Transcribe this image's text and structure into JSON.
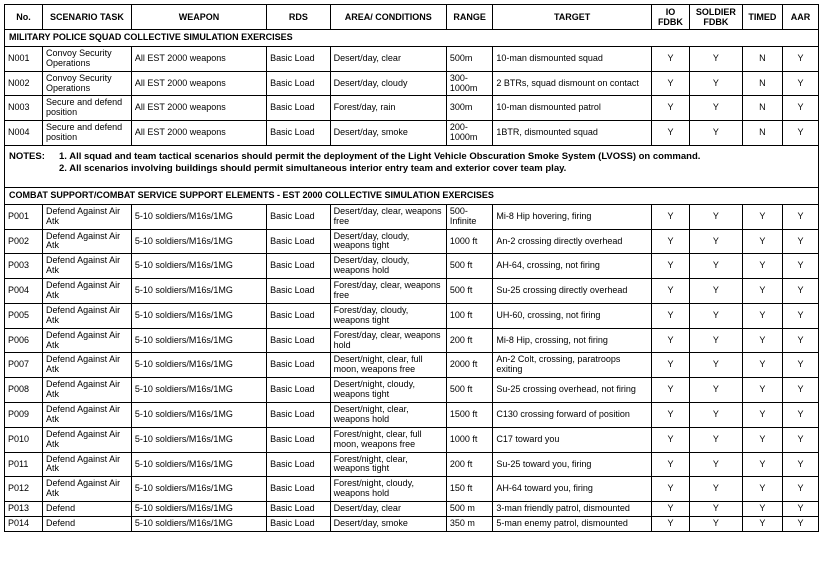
{
  "columns": [
    {
      "key": "no",
      "label": "No."
    },
    {
      "key": "task",
      "label": "SCENARIO TASK"
    },
    {
      "key": "weapon",
      "label": "WEAPON"
    },
    {
      "key": "rds",
      "label": "RDS"
    },
    {
      "key": "area",
      "label": "AREA/ CONDITIONS"
    },
    {
      "key": "range",
      "label": "RANGE"
    },
    {
      "key": "target",
      "label": "TARGET"
    },
    {
      "key": "io",
      "label": "IO FDBK"
    },
    {
      "key": "soldier",
      "label": "SOLDIER FDBK"
    },
    {
      "key": "timed",
      "label": "TIMED"
    },
    {
      "key": "aar",
      "label": "AAR"
    }
  ],
  "section1_title": "MILITARY POLICE SQUAD COLLECTIVE SIMULATION EXERCISES",
  "section1_rows": [
    {
      "no": "N001",
      "task": "Convoy Security Operations",
      "weapon": "All EST 2000 weapons",
      "rds": "Basic Load",
      "area": "Desert/day, clear",
      "range": "500m",
      "target": "10-man dismounted squad",
      "io": "Y",
      "soldier": "Y",
      "timed": "N",
      "aar": "Y"
    },
    {
      "no": "N002",
      "task": "Convoy Security Operations",
      "weapon": "All EST 2000 weapons",
      "rds": "Basic Load",
      "area": "Desert/day, cloudy",
      "range": "300-1000m",
      "target": "2 BTRs, squad dismount on contact",
      "io": "Y",
      "soldier": "Y",
      "timed": "N",
      "aar": "Y"
    },
    {
      "no": "N003",
      "task": "Secure and defend position",
      "weapon": "All EST 2000 weapons",
      "rds": "Basic Load",
      "area": "Forest/day, rain",
      "range": "300m",
      "target": "10-man dismounted patrol",
      "io": "Y",
      "soldier": "Y",
      "timed": "N",
      "aar": "Y"
    },
    {
      "no": "N004",
      "task": "Secure and defend position",
      "weapon": "All EST 2000 weapons",
      "rds": "Basic Load",
      "area": "Desert/day, smoke",
      "range": "200-1000m",
      "target": "1BTR, dismounted squad",
      "io": "Y",
      "soldier": "Y",
      "timed": "N",
      "aar": "Y"
    }
  ],
  "notes_label": "NOTES:",
  "notes": [
    "1.    All squad and team tactical scenarios should permit the deployment of the Light Vehicle Obscuration Smoke System (LVOSS) on command.",
    "2.    All scenarios involving buildings should permit simultaneous interior entry team and exterior cover team play."
  ],
  "section2_title": "COMBAT SUPPORT/COMBAT SERVICE SUPPORT ELEMENTS - EST 2000 COLLECTIVE SIMULATION EXERCISES",
  "section2_rows": [
    {
      "no": "P001",
      "task": "Defend Against Air Atk",
      "weapon": "5-10 soldiers/M16s/1MG",
      "rds": "Basic Load",
      "area": "Desert/day, clear, weapons free",
      "range": "500-Infinite",
      "target": "Mi-8 Hip hovering, firing",
      "io": "Y",
      "soldier": "Y",
      "timed": "Y",
      "aar": "Y"
    },
    {
      "no": "P002",
      "task": "Defend Against Air Atk",
      "weapon": "5-10 soldiers/M16s/1MG",
      "rds": "Basic Load",
      "area": "Desert/day, cloudy, weapons tight",
      "range": "1000 ft",
      "target": "An-2 crossing directly overhead",
      "io": "Y",
      "soldier": "Y",
      "timed": "Y",
      "aar": "Y"
    },
    {
      "no": "P003",
      "task": "Defend Against Air Atk",
      "weapon": "5-10 soldiers/M16s/1MG",
      "rds": "Basic Load",
      "area": "Desert/day, cloudy, weapons hold",
      "range": "500 ft",
      "target": "AH-64, crossing, not firing",
      "io": "Y",
      "soldier": "Y",
      "timed": "Y",
      "aar": "Y"
    },
    {
      "no": "P004",
      "task": "Defend Against Air Atk",
      "weapon": "5-10 soldiers/M16s/1MG",
      "rds": "Basic Load",
      "area": "Forest/day, clear, weapons free",
      "range": "500 ft",
      "target": "Su-25 crossing directly overhead",
      "io": "Y",
      "soldier": "Y",
      "timed": "Y",
      "aar": "Y"
    },
    {
      "no": "P005",
      "task": "Defend Against Air Atk",
      "weapon": "5-10 soldiers/M16s/1MG",
      "rds": "Basic Load",
      "area": "Forest/day, cloudy, weapons tight",
      "range": "100 ft",
      "target": "UH-60, crossing, not firing",
      "io": "Y",
      "soldier": "Y",
      "timed": "Y",
      "aar": "Y"
    },
    {
      "no": "P006",
      "task": "Defend Against Air Atk",
      "weapon": "5-10 soldiers/M16s/1MG",
      "rds": "Basic Load",
      "area": "Forest/day, clear, weapons hold",
      "range": "200 ft",
      "target": "Mi-8 Hip, crossing, not firing",
      "io": "Y",
      "soldier": "Y",
      "timed": "Y",
      "aar": "Y"
    },
    {
      "no": "P007",
      "task": "Defend Against Air Atk",
      "weapon": "5-10 soldiers/M16s/1MG",
      "rds": "Basic Load",
      "area": "Desert/night, clear, full moon, weapons free",
      "range": "2000 ft",
      "target": "An-2 Colt, crossing, paratroops exiting",
      "io": "Y",
      "soldier": "Y",
      "timed": "Y",
      "aar": "Y"
    },
    {
      "no": "P008",
      "task": "Defend Against Air Atk",
      "weapon": "5-10 soldiers/M16s/1MG",
      "rds": "Basic Load",
      "area": "Desert/night, cloudy, weapons tight",
      "range": "500 ft",
      "target": "Su-25 crossing overhead, not firing",
      "io": "Y",
      "soldier": "Y",
      "timed": "Y",
      "aar": "Y"
    },
    {
      "no": "P009",
      "task": "Defend Against Air Atk",
      "weapon": "5-10 soldiers/M16s/1MG",
      "rds": "Basic Load",
      "area": "Desert/night, clear, weapons hold",
      "range": "1500 ft",
      "target": "C130 crossing forward of position",
      "io": "Y",
      "soldier": "Y",
      "timed": "Y",
      "aar": "Y"
    },
    {
      "no": "P010",
      "task": "Defend Against Air Atk",
      "weapon": "5-10 soldiers/M16s/1MG",
      "rds": "Basic Load",
      "area": "Forest/night, clear, full moon, weapons free",
      "range": "1000 ft",
      "target": "C17 toward you",
      "io": "Y",
      "soldier": "Y",
      "timed": "Y",
      "aar": "Y"
    },
    {
      "no": "P011",
      "task": "Defend Against Air Atk",
      "weapon": "5-10 soldiers/M16s/1MG",
      "rds": "Basic Load",
      "area": "Forest/night, clear, weapons tight",
      "range": "200 ft",
      "target": "Su-25 toward you, firing",
      "io": "Y",
      "soldier": "Y",
      "timed": "Y",
      "aar": "Y"
    },
    {
      "no": "P012",
      "task": "Defend Against Air Atk",
      "weapon": "5-10 soldiers/M16s/1MG",
      "rds": "Basic Load",
      "area": "Forest/night, cloudy, weapons hold",
      "range": "150 ft",
      "target": "AH-64 toward you, firing",
      "io": "Y",
      "soldier": "Y",
      "timed": "Y",
      "aar": "Y"
    },
    {
      "no": "P013",
      "task": "Defend",
      "weapon": "5-10 soldiers/M16s/1MG",
      "rds": "Basic Load",
      "area": "Desert/day, clear",
      "range": "500 m",
      "target": "3-man friendly patrol, dismounted",
      "io": "Y",
      "soldier": "Y",
      "timed": "Y",
      "aar": "Y"
    },
    {
      "no": "P014",
      "task": "Defend",
      "weapon": "5-10 soldiers/M16s/1MG",
      "rds": "Basic Load",
      "area": "Desert/day, smoke",
      "range": "350 m",
      "target": "5-man enemy patrol, dismounted",
      "io": "Y",
      "soldier": "Y",
      "timed": "Y",
      "aar": "Y"
    }
  ]
}
